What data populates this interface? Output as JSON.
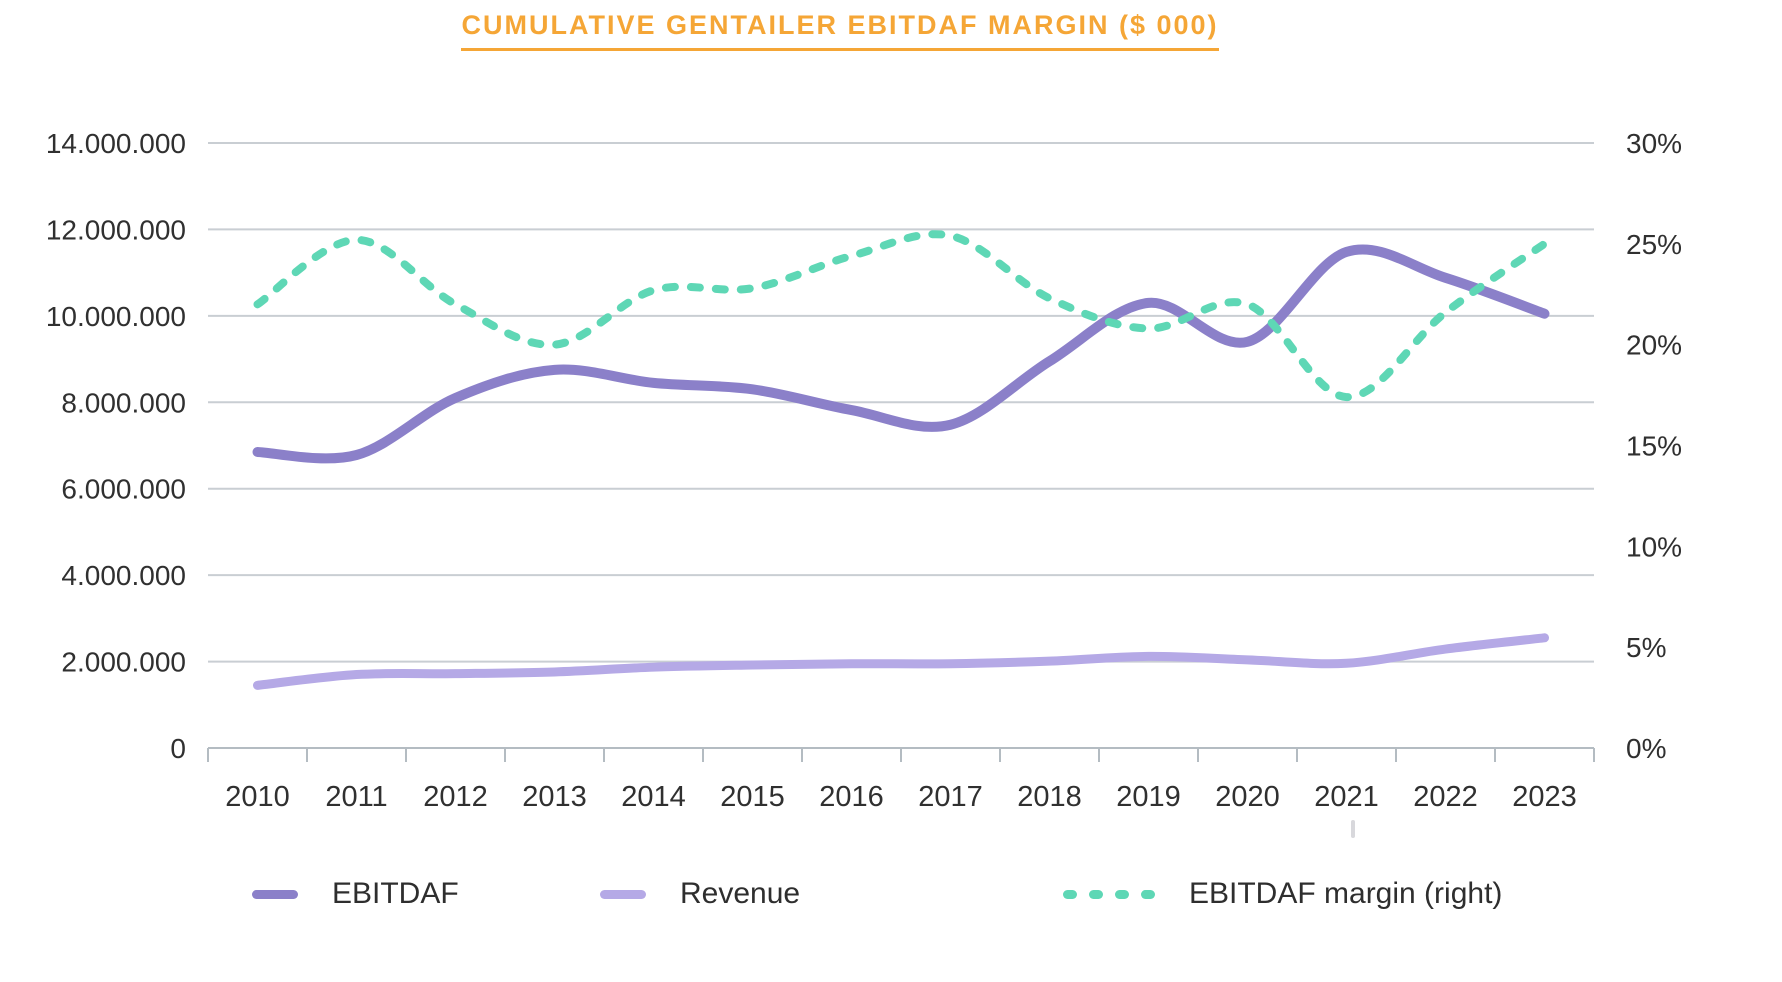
{
  "title": {
    "text": "CUMULATIVE GENTAILER EBITDAF MARGIN ($ 000)",
    "color": "#f5a636"
  },
  "chart_data": {
    "type": "line",
    "title": "CUMULATIVE GENTAILER EBITDAF MARGIN ($ 000)",
    "categories": [
      "2010",
      "2011",
      "2012",
      "2013",
      "2014",
      "2015",
      "2016",
      "2017",
      "2018",
      "2019",
      "2020",
      "2021",
      "2022",
      "2023"
    ],
    "series": [
      {
        "name": "EBITDAF",
        "axis": "left",
        "line_style": "solid",
        "color": "#8b80c9",
        "values": [
          6850000,
          6780000,
          8100000,
          8750000,
          8450000,
          8300000,
          7820000,
          7480000,
          8950000,
          10300000,
          9400000,
          11480000,
          10880000,
          10050000
        ]
      },
      {
        "name": "Revenue",
        "axis": "left",
        "line_style": "solid",
        "color": "#b5a9e6",
        "values": [
          1450000,
          1700000,
          1720000,
          1760000,
          1870000,
          1920000,
          1950000,
          1950000,
          2010000,
          2120000,
          2040000,
          1960000,
          2290000,
          2550000
        ]
      },
      {
        "name": "EBITDAF margin (right)",
        "axis": "right",
        "line_style": "dashed",
        "color": "#5ed7b5",
        "values": [
          22,
          25.2,
          22,
          20,
          22.7,
          22.8,
          24.4,
          25.4,
          22.3,
          20.8,
          22,
          17.4,
          21.6,
          25
        ]
      }
    ],
    "left_axis": {
      "min": 0,
      "max": 14000000,
      "tick_labels": [
        "14.000.000",
        "12.000.000",
        "10.000.000",
        "8.000.000",
        "6.000.000",
        "4.000.000",
        "2.000.000",
        "0"
      ]
    },
    "right_axis": {
      "min": 0,
      "max": 30,
      "unit": "%",
      "tick_labels": [
        "30%",
        "25%",
        "20%",
        "15%",
        "10%",
        "5%",
        "0%"
      ]
    },
    "xlabel": "",
    "ylabel": "",
    "grid": true,
    "legend_position": "bottom"
  },
  "legend": {
    "items": [
      {
        "label": "EBITDAF",
        "color": "#8b80c9",
        "style": "solid"
      },
      {
        "label": "Revenue",
        "color": "#b5a9e6",
        "style": "solid"
      },
      {
        "label": "EBITDAF margin (right)",
        "color": "#5ed7b5",
        "style": "dashed"
      }
    ]
  },
  "styles": {
    "grid_color": "#c9ced3",
    "axis_color": "#b4bcc2",
    "text_color": "#303030"
  }
}
